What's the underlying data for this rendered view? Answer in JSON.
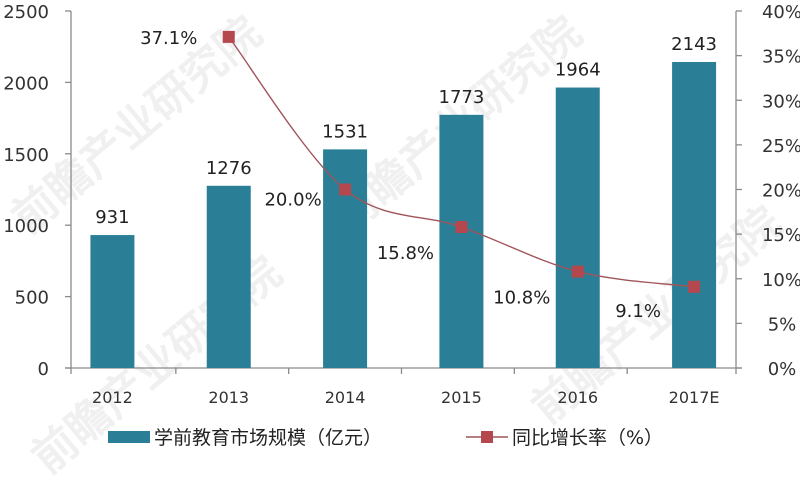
{
  "chart_data": {
    "type": "bar",
    "title": "",
    "categories": [
      "2012",
      "2013",
      "2014",
      "2015",
      "2016",
      "2017E"
    ],
    "series": [
      {
        "name": "学前教育市场规模（亿元）",
        "type": "bar",
        "axis": "left",
        "color": "#2a7f96",
        "values": [
          931,
          1276,
          1531,
          1773,
          1964,
          2143
        ],
        "labels": [
          "931",
          "1276",
          "1531",
          "1773",
          "1964",
          "2143"
        ]
      },
      {
        "name": "同比增长率（%）",
        "type": "line",
        "axis": "right",
        "color": "#b5474f",
        "values": [
          null,
          37.1,
          20.0,
          15.8,
          10.8,
          9.1
        ],
        "labels": [
          "",
          "37.1%",
          "20.0%",
          "15.8%",
          "10.8%",
          "9.1%"
        ]
      }
    ],
    "xlabel": "",
    "ylabel": "",
    "ylim": [
      0,
      2500
    ],
    "y_ticks": [
      "0",
      "500",
      "1000",
      "1500",
      "2000",
      "2500"
    ],
    "y2lim": [
      0,
      40
    ],
    "y2_ticks": [
      "0%",
      "5%",
      "10%",
      "15%",
      "20%",
      "25%",
      "30%",
      "35%",
      "40%"
    ],
    "grid": false,
    "legend_position": "bottom"
  },
  "legend": {
    "bar_label": "学前教育市场规模（亿元）",
    "line_label": "同比增长率（%）"
  },
  "watermark": "前瞻产业研究院"
}
